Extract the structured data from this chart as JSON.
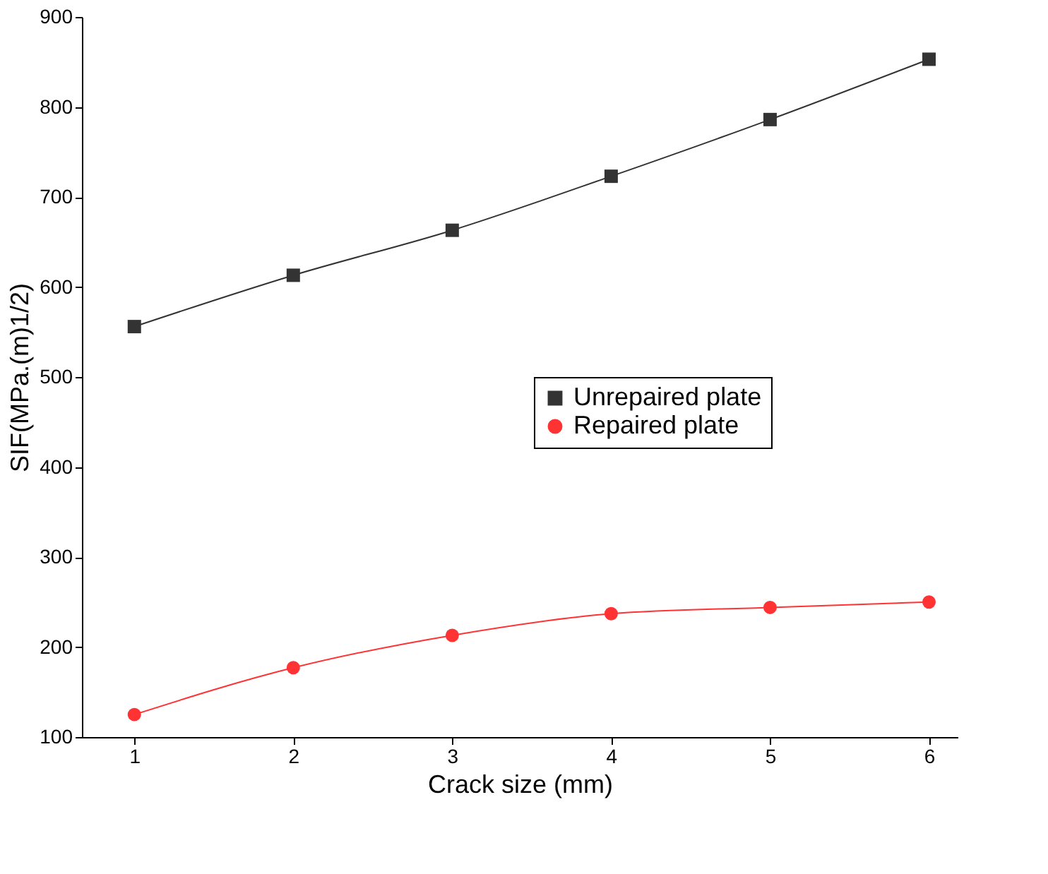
{
  "chart_data": {
    "type": "line",
    "xlabel": "Crack size (mm)",
    "ylabel": "SIF(MPa.(m)1/2)",
    "x": [
      1,
      2,
      3,
      4,
      5,
      6
    ],
    "series": [
      {
        "name": "Unrepaired plate",
        "color": "#333333",
        "marker": "square",
        "values": [
          556,
          613,
          663,
          723,
          786,
          853
        ]
      },
      {
        "name": "Repaired plate",
        "color": "#ff3333",
        "marker": "circle",
        "values": [
          125,
          177,
          213,
          237,
          244,
          250
        ]
      }
    ],
    "xlim": [
      0.67,
      6.18
    ],
    "xticks": [
      1,
      2,
      3,
      4,
      5,
      6
    ],
    "ylim": [
      100,
      900
    ],
    "yticks": [
      100,
      200,
      300,
      400,
      500,
      600,
      700,
      800,
      900
    ],
    "grid": false,
    "legend": "right"
  }
}
